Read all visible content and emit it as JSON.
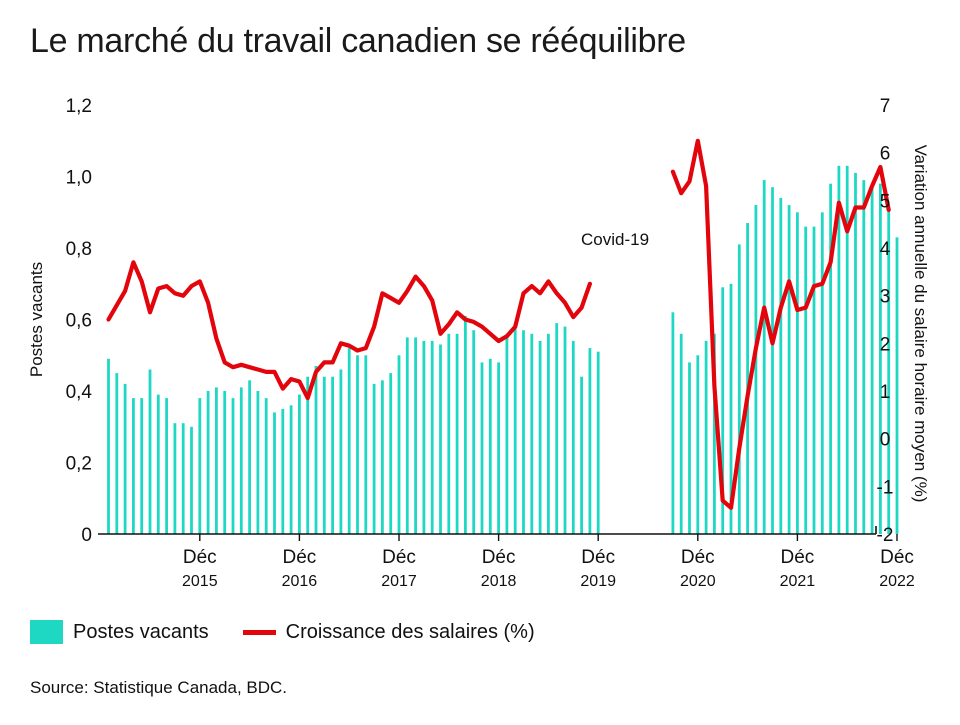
{
  "title": "Le marché du travail canadien se rééquilibre",
  "source": "Source: Statistique Canada, BDC.",
  "legend": {
    "bars_label": "Postes vacants",
    "line_label": "Croissance des salaires (%)"
  },
  "colors": {
    "bars": "#1fd8c4",
    "line": "#e3050c",
    "axis": "#111111"
  },
  "chart_data": {
    "type": "bar",
    "title": "Le marché du travail canadien se rééquilibre",
    "ylabel": "Postes vacants",
    "y2label": "Variation annuelle du salaire horaire moyen (%)",
    "ylim": [
      0,
      1.2
    ],
    "y2lim": [
      -2,
      7
    ],
    "y_ticks": [
      "0",
      "0,2",
      "0,4",
      "0,6",
      "0,8",
      "1,0",
      "1,2"
    ],
    "y2_ticks": [
      "-2",
      "-1",
      "0",
      "1",
      "2",
      "3",
      "4",
      "5",
      "6",
      "7"
    ],
    "x_tick_labels": [
      {
        "month": "Déc",
        "year": "2015"
      },
      {
        "month": "Déc",
        "year": "2016"
      },
      {
        "month": "Déc",
        "year": "2017"
      },
      {
        "month": "Déc",
        "year": "2018"
      },
      {
        "month": "Déc",
        "year": "2019"
      },
      {
        "month": "Déc",
        "year": "2020"
      },
      {
        "month": "Déc",
        "year": "2021"
      },
      {
        "month": "Déc",
        "year": "2022"
      }
    ],
    "annotation": "Covid-19",
    "series": [
      {
        "name": "Postes vacants",
        "kind": "bar",
        "axis": "left",
        "segments": [
          {
            "start": "2015-01",
            "values": [
              0.49,
              0.45,
              0.42,
              0.38,
              0.38,
              0.46,
              0.39,
              0.38,
              0.31,
              0.31,
              0.3,
              0.38,
              0.4,
              0.41,
              0.4,
              0.38,
              0.41,
              0.43,
              0.4,
              0.38,
              0.34,
              0.35,
              0.36,
              0.39,
              0.44,
              0.47,
              0.44,
              0.44,
              0.46,
              0.52,
              0.5,
              0.5,
              0.42,
              0.43,
              0.45,
              0.5,
              0.55,
              0.55,
              0.54,
              0.54,
              0.53,
              0.56,
              0.56,
              0.61,
              0.57,
              0.48,
              0.49,
              0.48,
              0.56,
              0.59,
              0.57,
              0.56,
              0.54,
              0.56,
              0.59,
              0.58,
              0.54,
              0.44,
              0.52,
              0.51
            ]
          },
          {
            "start": "2020-09",
            "values": [
              0.62,
              0.56,
              0.48,
              0.5,
              0.54,
              0.56,
              0.69,
              0.7,
              0.81,
              0.87,
              0.92,
              0.99,
              0.97,
              0.94,
              0.92,
              0.9,
              0.86,
              0.86,
              0.9,
              0.98,
              1.03,
              1.03,
              1.01,
              0.99,
              0.97,
              0.98,
              0.91,
              0.83
            ]
          }
        ]
      },
      {
        "name": "Croissance des salaires (%)",
        "kind": "line",
        "axis": "right",
        "segments": [
          {
            "start": "2015-01",
            "values": [
              2.5,
              2.8,
              3.1,
              3.7,
              3.3,
              2.65,
              3.15,
              3.2,
              3.05,
              3.0,
              3.2,
              3.3,
              2.85,
              2.1,
              1.6,
              1.5,
              1.55,
              1.5,
              1.45,
              1.4,
              1.4,
              1.05,
              1.25,
              1.2,
              0.85,
              1.4,
              1.6,
              1.6,
              2.0,
              1.95,
              1.85,
              1.9,
              2.35,
              3.05,
              2.95,
              2.85,
              3.1,
              3.4,
              3.2,
              2.9,
              2.2,
              2.4,
              2.65,
              2.5,
              2.45,
              2.35,
              2.2,
              2.05,
              2.15,
              2.35,
              3.05,
              3.2,
              3.05,
              3.3,
              3.05,
              2.85,
              2.55,
              2.75,
              3.25
            ]
          },
          {
            "start": "2020-09",
            "values": [
              5.6,
              5.15,
              5.4,
              6.25,
              5.3,
              1.1,
              -1.3,
              -1.45,
              -0.2,
              0.9,
              1.9,
              2.75,
              2.0,
              2.75,
              3.3,
              2.7,
              2.75,
              3.2,
              3.25,
              3.7,
              4.95,
              4.35,
              4.85,
              4.85,
              5.3,
              5.7,
              4.8
            ]
          }
        ]
      }
    ]
  }
}
